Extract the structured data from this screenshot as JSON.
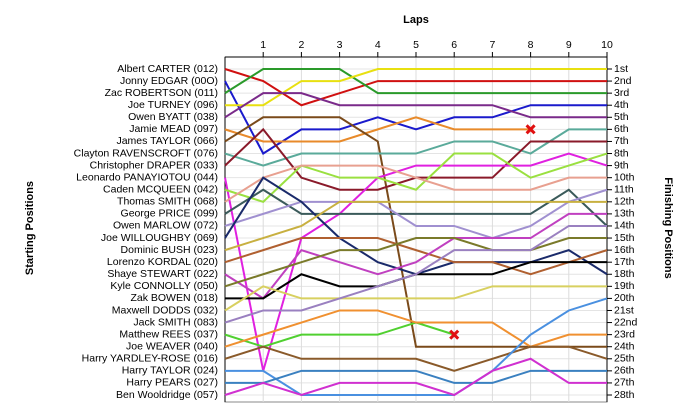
{
  "chart_data": {
    "type": "line",
    "title": "Laps",
    "y_label": "Starting Positions",
    "y2_label": "Finishing Positions",
    "x": [
      0,
      1,
      2,
      3,
      4,
      5,
      6,
      7,
      8,
      9,
      10
    ],
    "xlim": [
      0,
      10
    ],
    "xticks": [
      1,
      2,
      3,
      4,
      5,
      6,
      7,
      8,
      9,
      10
    ],
    "ylim": [
      1,
      28
    ],
    "y_inverted": true,
    "grid": true,
    "finish_labels": [
      "1st",
      "2nd",
      "3rd",
      "4th",
      "5th",
      "6th",
      "7th",
      "8th",
      "9th",
      "10th",
      "11th",
      "12th",
      "13th",
      "14th",
      "15th",
      "16th",
      "17th",
      "18th",
      "19th",
      "20th",
      "21st",
      "22nd",
      "23rd",
      "24th",
      "25th",
      "26th",
      "27th",
      "28th"
    ],
    "series": [
      {
        "name": "Albert CARTER (012)",
        "color": "#d01010",
        "values": [
          1,
          2,
          4,
          3,
          2,
          2,
          2,
          2,
          2,
          2,
          2
        ]
      },
      {
        "name": "Jonny EDGAR (00O)",
        "color": "#1a1acc",
        "values": [
          2,
          8,
          6,
          6,
          5,
          6,
          5,
          5,
          4,
          4,
          4
        ]
      },
      {
        "name": "Zac ROBERTSON (011)",
        "color": "#2a9a2a",
        "values": [
          3,
          1,
          1,
          1,
          3,
          3,
          3,
          3,
          3,
          3,
          3
        ]
      },
      {
        "name": "Joe TURNEY (096)",
        "color": "#e8e010",
        "values": [
          4,
          4,
          2,
          2,
          1,
          1,
          1,
          1,
          1,
          1,
          1
        ]
      },
      {
        "name": "Owen BYATT (038)",
        "color": "#7a2a8a",
        "values": [
          5,
          3,
          3,
          4,
          4,
          4,
          4,
          4,
          5,
          5,
          5
        ]
      },
      {
        "name": "Jamie MEAD (097)",
        "color": "#e88a2a",
        "values": [
          6,
          7,
          7,
          7,
          6,
          5,
          6,
          6,
          6,
          null,
          null
        ]
      },
      {
        "name": "James TAYLOR (066)",
        "color": "#7a4a1a",
        "values": [
          7,
          5,
          5,
          5,
          7,
          24,
          24,
          24,
          24,
          24,
          24
        ]
      },
      {
        "name": "Clayton RAVENSCROFT (076)",
        "color": "#5aaa9a",
        "values": [
          8,
          9,
          8,
          8,
          8,
          8,
          7,
          7,
          8,
          6,
          6
        ]
      },
      {
        "name": "Christopher DRAPER (033)",
        "color": "#8a1a2a",
        "values": [
          9,
          6,
          10,
          11,
          11,
          10,
          10,
          10,
          7,
          7,
          7
        ]
      },
      {
        "name": "Leonardo PANAYIOTOU (044)",
        "color": "#e020e0",
        "values": [
          10,
          26,
          15,
          13,
          10,
          9,
          9,
          9,
          9,
          8,
          9
        ]
      },
      {
        "name": "Caden MCQUEEN (042)",
        "color": "#9ae040",
        "values": [
          11,
          12,
          9,
          10,
          10,
          11,
          8,
          8,
          10,
          9,
          8
        ]
      },
      {
        "name": "Thomas SMITH (068)",
        "color": "#e8a090",
        "values": [
          12,
          10,
          9,
          9,
          9,
          10,
          11,
          11,
          11,
          10,
          10
        ]
      },
      {
        "name": "George PRICE (099)",
        "color": "#3a5a5a",
        "values": [
          13,
          11,
          13,
          13,
          13,
          13,
          13,
          13,
          13,
          11,
          14
        ]
      },
      {
        "name": "Owen MARLOW (072)",
        "color": "#a090d0",
        "values": [
          14,
          13,
          12,
          12,
          12,
          14,
          14,
          15,
          14,
          12,
          11
        ]
      },
      {
        "name": "Joe WILLOUGHBY (069)",
        "color": "#1a2a6a",
        "values": [
          15,
          10,
          12,
          15,
          17,
          18,
          17,
          17,
          17,
          16,
          18
        ]
      },
      {
        "name": "Dominic BUSH (023)",
        "color": "#c8b040",
        "values": [
          16,
          15,
          14,
          12,
          12,
          12,
          12,
          12,
          12,
          12,
          12
        ]
      },
      {
        "name": "Lorenzo KORDAL (020)",
        "color": "#b06030",
        "values": [
          17,
          16,
          15,
          15,
          15,
          16,
          17,
          17,
          18,
          17,
          16
        ]
      },
      {
        "name": "Shaye STEWART (022)",
        "color": "#c040c0",
        "values": [
          18,
          20,
          16,
          17,
          18,
          17,
          15,
          15,
          15,
          13,
          13
        ]
      },
      {
        "name": "Kyle CONNOLLY (050)",
        "color": "#7a7a2a",
        "values": [
          19,
          18,
          17,
          16,
          16,
          15,
          15,
          16,
          16,
          15,
          15
        ]
      },
      {
        "name": "Zak BOWEN (018)",
        "color": "#000000",
        "values": [
          20,
          20,
          18,
          19,
          19,
          18,
          18,
          18,
          17,
          17,
          17
        ]
      },
      {
        "name": "Maxwell DODDS (032)",
        "color": "#d8d060",
        "values": [
          21,
          19,
          20,
          20,
          20,
          20,
          20,
          19,
          19,
          19,
          19
        ]
      },
      {
        "name": "Jack SMITH (083)",
        "color": "#9a80c0",
        "values": [
          22,
          21,
          21,
          20,
          19,
          18,
          16,
          16,
          16,
          14,
          14
        ]
      },
      {
        "name": "Matthew REES (037)",
        "color": "#50d030",
        "values": [
          23,
          24,
          23,
          23,
          23,
          22,
          23,
          null,
          null,
          null,
          null
        ]
      },
      {
        "name": "Joe WEAVER (040)",
        "color": "#f09030",
        "values": [
          24,
          23,
          22,
          21,
          21,
          22,
          22,
          22,
          24,
          23,
          23
        ]
      },
      {
        "name": "Harry YARDLEY-ROSE (016)",
        "color": "#8a5a2a",
        "values": [
          25,
          24,
          25,
          25,
          25,
          25,
          26,
          25,
          24,
          24,
          25
        ]
      },
      {
        "name": "Harry TAYLOR (024)",
        "color": "#4a90e0",
        "values": [
          26,
          26,
          28,
          28,
          28,
          28,
          28,
          26,
          23,
          21,
          20
        ]
      },
      {
        "name": "Harry PEARS (027)",
        "color": "#3a80c0",
        "values": [
          27,
          27,
          26,
          26,
          26,
          26,
          27,
          27,
          26,
          26,
          26
        ]
      },
      {
        "name": "Ben Wooldridge (057)",
        "color": "#d030d0",
        "values": [
          28,
          27,
          28,
          27,
          27,
          27,
          28,
          26,
          25,
          27,
          27
        ]
      }
    ],
    "markers": [
      {
        "x": 8,
        "y": 6
      },
      {
        "x": 6,
        "y": 23
      }
    ]
  }
}
